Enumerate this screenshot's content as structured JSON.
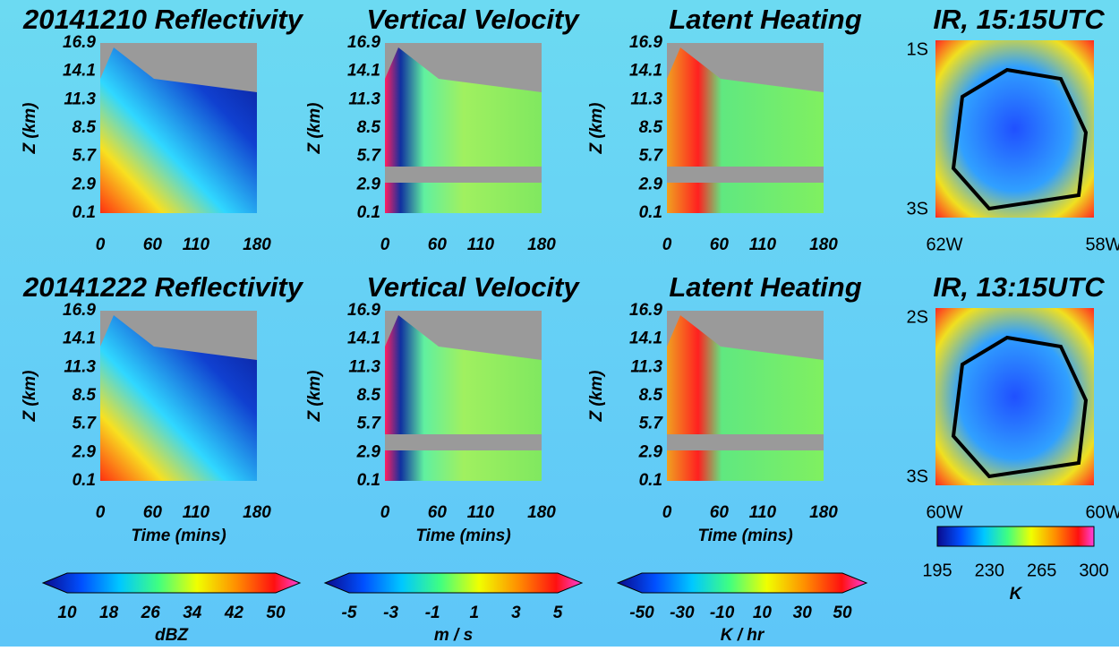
{
  "chart_data": [
    {
      "type": "heatmap",
      "title": "20141210 Reflectivity",
      "ylabel": "Z (km)",
      "xlim": [
        0,
        180
      ],
      "xticks": [
        0,
        60,
        110,
        180
      ],
      "ylim": [
        0.1,
        16.9
      ],
      "yticks": [
        0.1,
        2.9,
        5.7,
        8.5,
        11.3,
        14.1,
        16.9
      ],
      "colormap": "reflectivity"
    },
    {
      "type": "heatmap",
      "title": "Vertical Velocity",
      "ylabel": "Z (km)",
      "xlim": [
        0,
        180
      ],
      "xticks": [
        0,
        60,
        110,
        180
      ],
      "ylim": [
        0.1,
        16.9
      ],
      "yticks": [
        0.1,
        2.9,
        5.7,
        8.5,
        11.3,
        14.1,
        16.9
      ],
      "colormap": "velocity"
    },
    {
      "type": "heatmap",
      "title": "Latent Heating",
      "ylabel": "Z (km)",
      "xlim": [
        0,
        180
      ],
      "xticks": [
        0,
        60,
        110,
        180
      ],
      "ylim": [
        0.1,
        16.9
      ],
      "yticks": [
        0.1,
        2.9,
        5.7,
        8.5,
        11.3,
        14.1,
        16.9
      ],
      "colormap": "heating"
    },
    {
      "type": "image",
      "title": "IR, 15:15UTC",
      "top_label": "1S",
      "bottom_label": "3S",
      "left_label": "62W",
      "right_label": "58W"
    },
    {
      "type": "heatmap",
      "title": "20141222 Reflectivity",
      "ylabel": "Z (km)",
      "xlabel": "Time  (mins)",
      "xlim": [
        0,
        180
      ],
      "xticks": [
        0,
        60,
        110,
        180
      ],
      "ylim": [
        0.1,
        16.9
      ],
      "yticks": [
        0.1,
        2.9,
        5.7,
        8.5,
        11.3,
        14.1,
        16.9
      ],
      "colormap": "reflectivity"
    },
    {
      "type": "heatmap",
      "title": "Vertical Velocity",
      "ylabel": "Z (km)",
      "xlabel": "Time  (mins)",
      "xlim": [
        0,
        180
      ],
      "xticks": [
        0,
        60,
        110,
        180
      ],
      "ylim": [
        0.1,
        16.9
      ],
      "yticks": [
        0.1,
        2.9,
        5.7,
        8.5,
        11.3,
        14.1,
        16.9
      ],
      "colormap": "velocity"
    },
    {
      "type": "heatmap",
      "title": "Latent Heating",
      "ylabel": "Z (km)",
      "xlabel": "Time  (mins)",
      "xlim": [
        0,
        180
      ],
      "xticks": [
        0,
        60,
        110,
        180
      ],
      "ylim": [
        0.1,
        16.9
      ],
      "yticks": [
        0.1,
        2.9,
        5.7,
        8.5,
        11.3,
        14.1,
        16.9
      ],
      "colormap": "heating"
    },
    {
      "type": "image",
      "title": "IR, 13:15UTC",
      "top_label": "2S",
      "bottom_label": "3S",
      "left_label": "60W",
      "right_label": "60W"
    },
    {
      "type": "colorbar",
      "label": "dBZ",
      "ticks": [
        10,
        18,
        26,
        34,
        42,
        50
      ],
      "extend": true
    },
    {
      "type": "colorbar",
      "label": "m / s",
      "ticks": [
        -5,
        -3,
        -1,
        1,
        3,
        5
      ],
      "extend": true
    },
    {
      "type": "colorbar",
      "label": "K / hr",
      "ticks": [
        -50,
        -30,
        -10,
        10,
        30,
        50
      ],
      "extend": true
    },
    {
      "type": "colorbar",
      "label": "K",
      "ticks": [
        195,
        230,
        265,
        300
      ],
      "extend": false
    }
  ]
}
